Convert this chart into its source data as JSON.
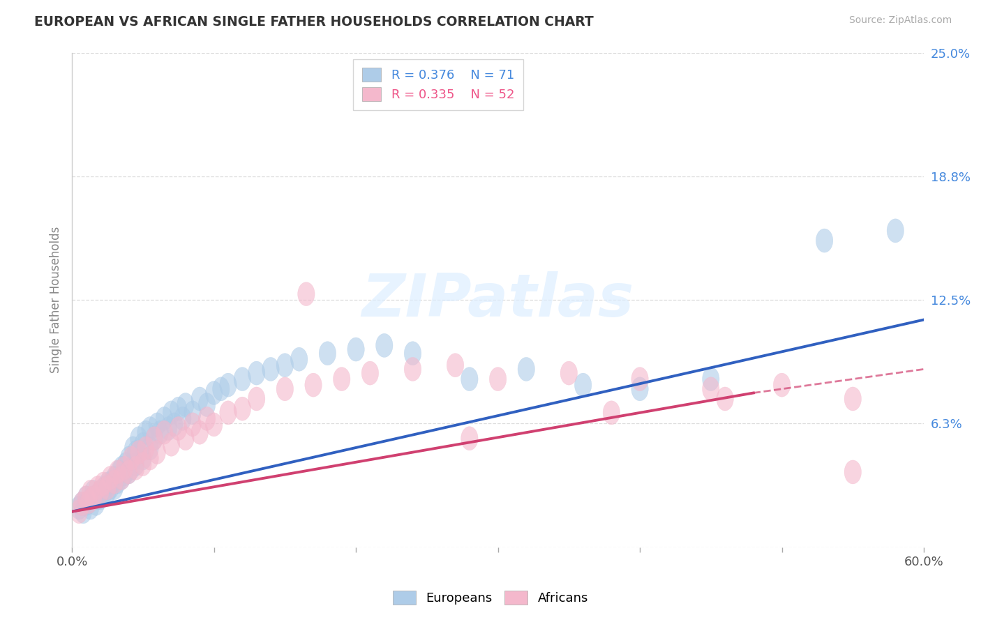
{
  "title": "EUROPEAN VS AFRICAN SINGLE FATHER HOUSEHOLDS CORRELATION CHART",
  "source_text": "Source: ZipAtlas.com",
  "ylabel": "Single Father Households",
  "xlim": [
    0.0,
    0.6
  ],
  "ylim": [
    0.0,
    0.25
  ],
  "yticks": [
    0.0,
    0.0625,
    0.125,
    0.1875,
    0.25
  ],
  "ytick_labels": [
    "",
    "6.3%",
    "12.5%",
    "18.8%",
    "25.0%"
  ],
  "xticks": [
    0.0,
    0.1,
    0.2,
    0.3,
    0.4,
    0.5,
    0.6
  ],
  "europeans_R": 0.376,
  "europeans_N": 71,
  "africans_R": 0.335,
  "africans_N": 52,
  "blue_color": "#aecce8",
  "pink_color": "#f4b8cc",
  "blue_line_color": "#3060c0",
  "pink_line_color": "#d04070",
  "title_color": "#333333",
  "axis_label_color": "#888888",
  "grid_color": "#dddddd",
  "legend_color_blue": "#4488dd",
  "legend_color_pink": "#ee5588",
  "europeans_x": [
    0.005,
    0.007,
    0.008,
    0.01,
    0.01,
    0.012,
    0.013,
    0.015,
    0.015,
    0.017,
    0.018,
    0.02,
    0.02,
    0.022,
    0.023,
    0.025,
    0.025,
    0.027,
    0.028,
    0.03,
    0.03,
    0.032,
    0.033,
    0.035,
    0.035,
    0.037,
    0.038,
    0.04,
    0.04,
    0.042,
    0.043,
    0.045,
    0.045,
    0.047,
    0.05,
    0.05,
    0.052,
    0.055,
    0.055,
    0.058,
    0.06,
    0.062,
    0.065,
    0.068,
    0.07,
    0.072,
    0.075,
    0.078,
    0.08,
    0.085,
    0.09,
    0.095,
    0.1,
    0.105,
    0.11,
    0.12,
    0.13,
    0.14,
    0.15,
    0.16,
    0.18,
    0.2,
    0.22,
    0.24,
    0.28,
    0.32,
    0.36,
    0.4,
    0.45,
    0.53,
    0.58
  ],
  "europeans_y": [
    0.02,
    0.022,
    0.018,
    0.025,
    0.022,
    0.023,
    0.02,
    0.025,
    0.028,
    0.022,
    0.025,
    0.028,
    0.025,
    0.027,
    0.03,
    0.028,
    0.032,
    0.03,
    0.033,
    0.03,
    0.035,
    0.033,
    0.038,
    0.035,
    0.04,
    0.037,
    0.042,
    0.038,
    0.045,
    0.04,
    0.05,
    0.042,
    0.048,
    0.055,
    0.045,
    0.052,
    0.058,
    0.05,
    0.06,
    0.055,
    0.062,
    0.058,
    0.065,
    0.06,
    0.068,
    0.062,
    0.07,
    0.065,
    0.072,
    0.068,
    0.075,
    0.072,
    0.078,
    0.08,
    0.082,
    0.085,
    0.088,
    0.09,
    0.092,
    0.095,
    0.098,
    0.1,
    0.102,
    0.098,
    0.085,
    0.09,
    0.082,
    0.08,
    0.085,
    0.155,
    0.16
  ],
  "africans_x": [
    0.005,
    0.007,
    0.01,
    0.012,
    0.013,
    0.015,
    0.018,
    0.02,
    0.022,
    0.025,
    0.027,
    0.03,
    0.032,
    0.035,
    0.037,
    0.04,
    0.042,
    0.045,
    0.047,
    0.05,
    0.052,
    0.055,
    0.058,
    0.06,
    0.065,
    0.07,
    0.075,
    0.08,
    0.085,
    0.09,
    0.095,
    0.1,
    0.11,
    0.12,
    0.13,
    0.15,
    0.17,
    0.19,
    0.21,
    0.24,
    0.27,
    0.3,
    0.35,
    0.4,
    0.45,
    0.5,
    0.55,
    0.165,
    0.28,
    0.38,
    0.46,
    0.55
  ],
  "africans_y": [
    0.018,
    0.022,
    0.025,
    0.023,
    0.028,
    0.025,
    0.03,
    0.028,
    0.032,
    0.03,
    0.035,
    0.033,
    0.038,
    0.035,
    0.04,
    0.038,
    0.045,
    0.04,
    0.048,
    0.042,
    0.05,
    0.045,
    0.055,
    0.048,
    0.058,
    0.052,
    0.06,
    0.055,
    0.062,
    0.058,
    0.065,
    0.062,
    0.068,
    0.07,
    0.075,
    0.08,
    0.082,
    0.085,
    0.088,
    0.09,
    0.092,
    0.085,
    0.088,
    0.085,
    0.08,
    0.082,
    0.075,
    0.128,
    0.055,
    0.068,
    0.075,
    0.038
  ]
}
